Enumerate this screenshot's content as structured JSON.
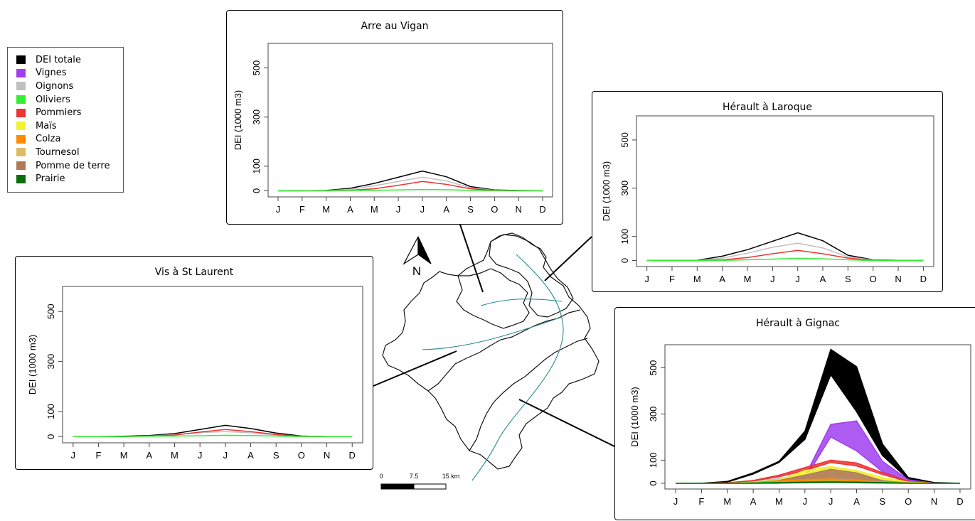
{
  "legend": [
    {
      "label": "DEI totale",
      "color": "#000000"
    },
    {
      "label": "Vignes",
      "color": "#a03ef0"
    },
    {
      "label": "Oignons",
      "color": "#c0c0c0"
    },
    {
      "label": "Oliviers",
      "color": "#33ee33"
    },
    {
      "label": "Pommiers",
      "color": "#ee3333"
    },
    {
      "label": "Maïs",
      "color": "#f2f230"
    },
    {
      "label": "Colza",
      "color": "#ff8c00"
    },
    {
      "label": "Tournesol",
      "color": "#ddbb66"
    },
    {
      "label": "Pomme de terre",
      "color": "#b07a5a"
    },
    {
      "label": "Prairie",
      "color": "#0a6e0a"
    }
  ],
  "map": {
    "north_label": "N",
    "scale_labels": [
      "0",
      "7.5",
      "15 km"
    ]
  },
  "chart_data": [
    {
      "type": "area",
      "title": "Arre au Vigan",
      "ylabel": "DEI (1000 m3)",
      "categories": [
        "J",
        "F",
        "M",
        "A",
        "M",
        "J",
        "J",
        "A",
        "S",
        "O",
        "N",
        "D"
      ],
      "yticks": [
        0,
        100,
        300,
        500
      ],
      "ylim": [
        -25,
        600
      ],
      "series": [
        {
          "name": "DEI totale",
          "color": "#000000",
          "values": [
            0,
            0,
            1,
            10,
            30,
            55,
            80,
            57,
            17,
            3,
            1,
            0
          ]
        },
        {
          "name": "Oignons",
          "color": "#c0c0c0",
          "values": [
            0,
            0,
            0,
            6,
            20,
            38,
            55,
            40,
            12,
            2,
            0,
            0
          ]
        },
        {
          "name": "Pommiers",
          "color": "#ee3333",
          "values": [
            0,
            0,
            0,
            2,
            8,
            22,
            38,
            26,
            8,
            1,
            0,
            0
          ]
        },
        {
          "name": "Oliviers",
          "color": "#33ee33",
          "values": [
            0,
            0,
            0,
            1,
            2,
            3,
            5,
            4,
            2,
            0,
            0,
            0
          ]
        }
      ]
    },
    {
      "type": "area",
      "title": "Hérault à Laroque",
      "ylabel": "DEI (1000 m3)",
      "categories": [
        "J",
        "F",
        "M",
        "A",
        "M",
        "J",
        "J",
        "A",
        "S",
        "O",
        "N",
        "D"
      ],
      "yticks": [
        0,
        100,
        300,
        500
      ],
      "ylim": [
        -25,
        600
      ],
      "series": [
        {
          "name": "DEI totale",
          "color": "#000000",
          "values": [
            0,
            0,
            1,
            18,
            45,
            80,
            115,
            82,
            22,
            3,
            1,
            0
          ]
        },
        {
          "name": "Oignons",
          "color": "#c0c0c0",
          "values": [
            0,
            0,
            0,
            10,
            30,
            55,
            72,
            52,
            15,
            2,
            0,
            0
          ]
        },
        {
          "name": "Pommiers",
          "color": "#ee3333",
          "values": [
            0,
            0,
            0,
            3,
            12,
            28,
            42,
            28,
            10,
            1,
            0,
            0
          ]
        },
        {
          "name": "Oliviers",
          "color": "#33ee33",
          "values": [
            0,
            0,
            0,
            1,
            3,
            6,
            9,
            7,
            3,
            0,
            0,
            0
          ]
        }
      ]
    },
    {
      "type": "area",
      "title": "Vis à St Laurent",
      "ylabel": "DEI (1000 m3)",
      "categories": [
        "J",
        "F",
        "M",
        "A",
        "M",
        "J",
        "J",
        "A",
        "S",
        "O",
        "N",
        "D"
      ],
      "yticks": [
        0,
        100,
        300,
        500
      ],
      "ylim": [
        -25,
        600
      ],
      "series": [
        {
          "name": "DEI totale",
          "color": "#000000",
          "values": [
            0,
            0,
            1,
            4,
            12,
            28,
            45,
            32,
            14,
            2,
            0,
            0
          ]
        },
        {
          "name": "Oignons",
          "color": "#c0c0c0",
          "values": [
            0,
            0,
            0,
            2,
            8,
            16,
            20,
            15,
            6,
            1,
            0,
            0
          ]
        },
        {
          "name": "Pommiers",
          "color": "#ee3333",
          "values": [
            0,
            0,
            0,
            2,
            6,
            18,
            28,
            20,
            8,
            1,
            0,
            0
          ]
        },
        {
          "name": "Oliviers",
          "color": "#33ee33",
          "values": [
            0,
            0,
            0,
            1,
            2,
            3,
            5,
            4,
            2,
            0,
            0,
            0
          ]
        }
      ]
    },
    {
      "type": "area",
      "title": "Hérault à Gignac",
      "ylabel": "DEI (1000 m3)",
      "categories": [
        "J",
        "F",
        "M",
        "A",
        "M",
        "J",
        "J",
        "A",
        "S",
        "O",
        "N",
        "D"
      ],
      "yticks": [
        0,
        100,
        300,
        500
      ],
      "ylim": [
        -25,
        600
      ],
      "series": [
        {
          "name": "DEI totale",
          "color": "#000000",
          "lower": [
            0,
            0,
            5,
            40,
            90,
            190,
            470,
            310,
            120,
            18,
            2,
            0
          ],
          "upper": [
            0,
            0,
            8,
            45,
            95,
            225,
            580,
            505,
            170,
            25,
            3,
            0
          ]
        },
        {
          "name": "Vignes",
          "color": "#a03ef0",
          "lower": [
            0,
            0,
            0,
            0,
            0,
            20,
            200,
            140,
            50,
            8,
            0,
            0
          ],
          "upper": [
            0,
            0,
            0,
            0,
            0,
            30,
            255,
            270,
            95,
            15,
            0,
            0
          ]
        },
        {
          "name": "Oignons",
          "color": "#c0c0c0",
          "lower": [
            0,
            0,
            0,
            5,
            15,
            30,
            50,
            35,
            10,
            2,
            0,
            0
          ],
          "upper": [
            0,
            0,
            0,
            7,
            20,
            40,
            70,
            50,
            15,
            3,
            0,
            0
          ]
        },
        {
          "name": "Pommiers",
          "color": "#ee3333",
          "lower": [
            0,
            0,
            1,
            10,
            28,
            55,
            90,
            75,
            38,
            6,
            0,
            0
          ],
          "upper": [
            0,
            0,
            2,
            12,
            35,
            68,
            100,
            88,
            46,
            9,
            0,
            0
          ]
        },
        {
          "name": "Maïs",
          "color": "#f2f230",
          "lower": [
            0,
            0,
            0,
            3,
            10,
            40,
            55,
            40,
            18,
            3,
            0,
            0
          ],
          "upper": [
            0,
            0,
            0,
            5,
            14,
            55,
            72,
            55,
            25,
            5,
            0,
            0
          ]
        },
        {
          "name": "Tournesol",
          "color": "#ddbb66",
          "lower": [
            0,
            0,
            0,
            2,
            6,
            18,
            30,
            22,
            8,
            1,
            0,
            0
          ],
          "upper": [
            0,
            0,
            0,
            4,
            10,
            28,
            45,
            32,
            12,
            2,
            0,
            0
          ]
        },
        {
          "name": "Pomme de terre",
          "color": "#b07a5a",
          "lower": [
            0,
            0,
            0,
            0,
            4,
            15,
            20,
            10,
            4,
            0,
            0,
            0
          ],
          "upper": [
            0,
            0,
            0,
            2,
            12,
            35,
            60,
            45,
            10,
            1,
            0,
            0
          ]
        },
        {
          "name": "Colza",
          "color": "#ff8c00",
          "lower": [
            0,
            0,
            0,
            1,
            6,
            10,
            12,
            8,
            4,
            1,
            0,
            0
          ],
          "upper": [
            0,
            0,
            0,
            2,
            10,
            16,
            18,
            12,
            6,
            2,
            0,
            0
          ]
        },
        {
          "name": "Oliviers",
          "color": "#33ee33",
          "lower": [
            0,
            0,
            0,
            1,
            2,
            3,
            4,
            3,
            2,
            0,
            0,
            0
          ],
          "upper": [
            0,
            0,
            0,
            2,
            5,
            7,
            8,
            6,
            4,
            1,
            0,
            0
          ]
        },
        {
          "name": "Prairie",
          "color": "#0a6e0a",
          "lower": [
            0,
            0,
            0,
            0,
            1,
            2,
            3,
            2,
            1,
            0,
            0,
            0
          ],
          "upper": [
            0,
            0,
            0,
            1,
            3,
            5,
            6,
            5,
            3,
            1,
            0,
            0
          ]
        }
      ]
    }
  ]
}
